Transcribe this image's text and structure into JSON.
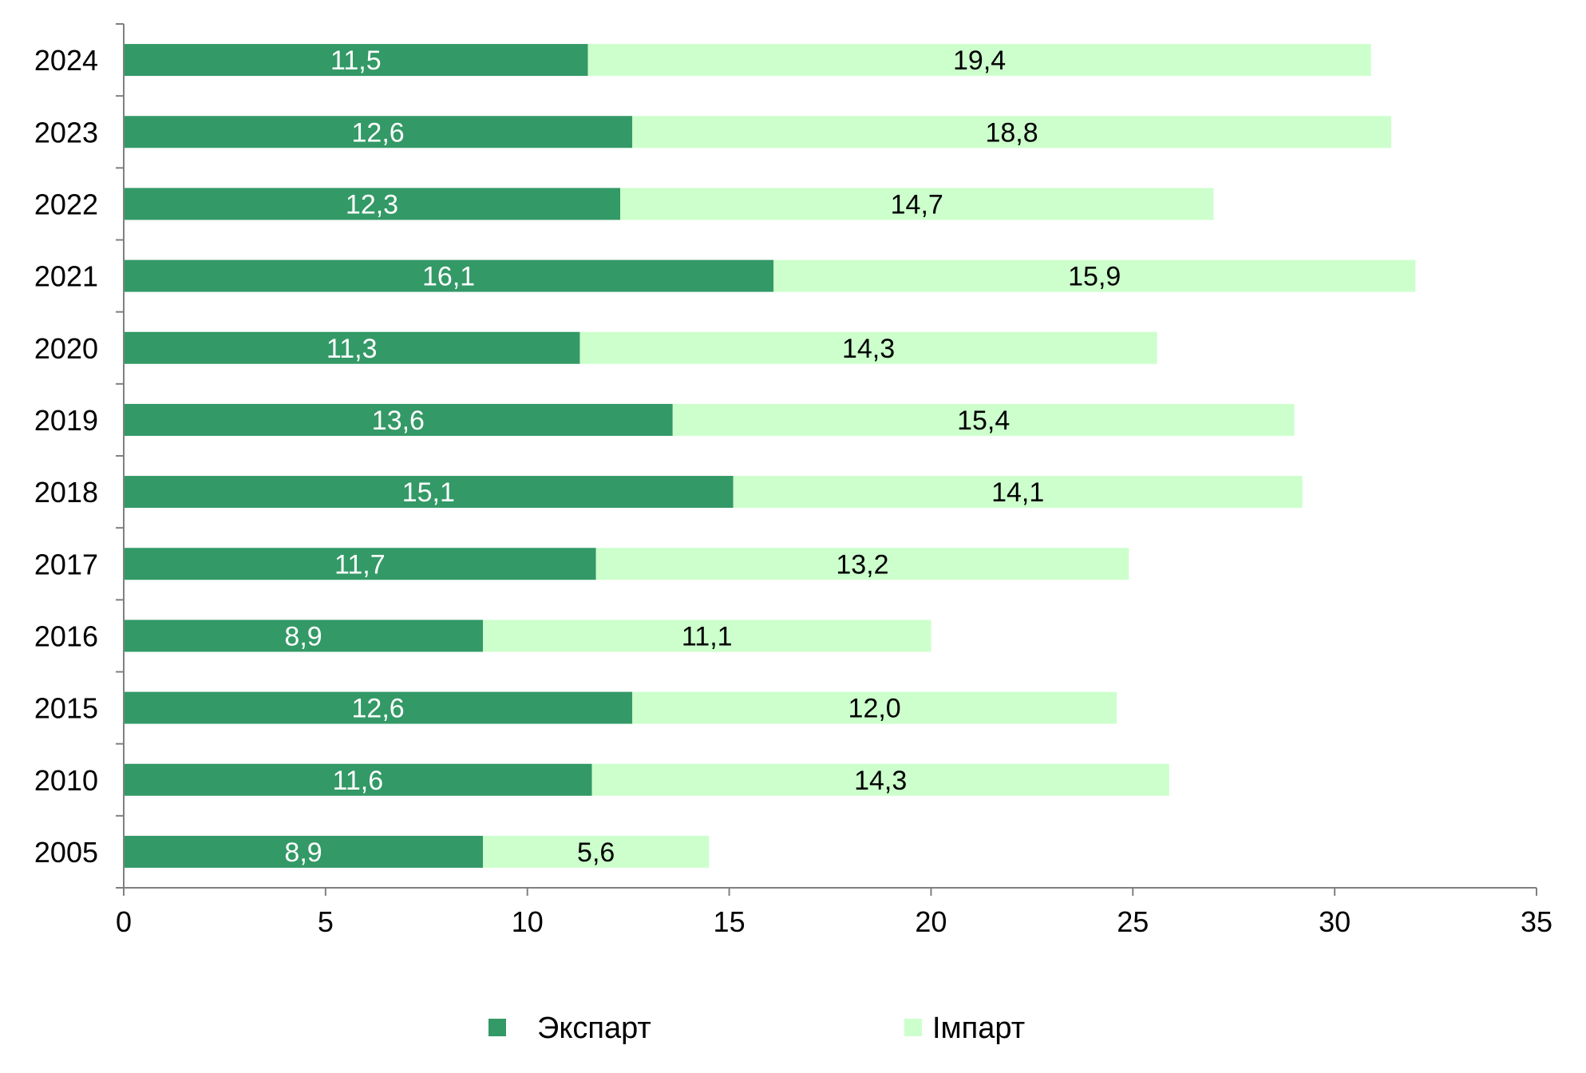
{
  "chart_data": {
    "type": "bar",
    "orientation": "horizontal",
    "stacked": true,
    "title": "",
    "xlabel": "",
    "ylabel": "",
    "xlim": [
      0,
      35
    ],
    "x_ticks": [
      0,
      5,
      10,
      15,
      20,
      25,
      30,
      35
    ],
    "grid": false,
    "legend_position": "bottom",
    "categories": [
      "2024",
      "2023",
      "2022",
      "2021",
      "2020",
      "2019",
      "2018",
      "2017",
      "2016",
      "2015",
      "2010",
      "2005"
    ],
    "series": [
      {
        "name": "Экспарт",
        "color": "#339966",
        "label_color": "#ffffff",
        "values": [
          11.5,
          12.6,
          12.3,
          16.1,
          11.3,
          13.6,
          15.1,
          11.7,
          8.9,
          12.6,
          11.6,
          8.9
        ],
        "labels": [
          "11,5",
          "12,6",
          "12,3",
          "16,1",
          "11,3",
          "13,6",
          "15,1",
          "11,7",
          "8,9",
          "12,6",
          "11,6",
          "8,9"
        ]
      },
      {
        "name": "Імпарт",
        "color": "#ccffcc",
        "label_color": "#000000",
        "values": [
          19.4,
          18.8,
          14.7,
          15.9,
          14.3,
          15.4,
          14.1,
          13.2,
          11.1,
          12.0,
          14.3,
          5.6
        ],
        "labels": [
          "19,4",
          "18,8",
          "14,7",
          "15,9",
          "14,3",
          "15,4",
          "14,1",
          "13,2",
          "11,1",
          "12,0",
          "14,3",
          "5,6"
        ]
      }
    ]
  }
}
